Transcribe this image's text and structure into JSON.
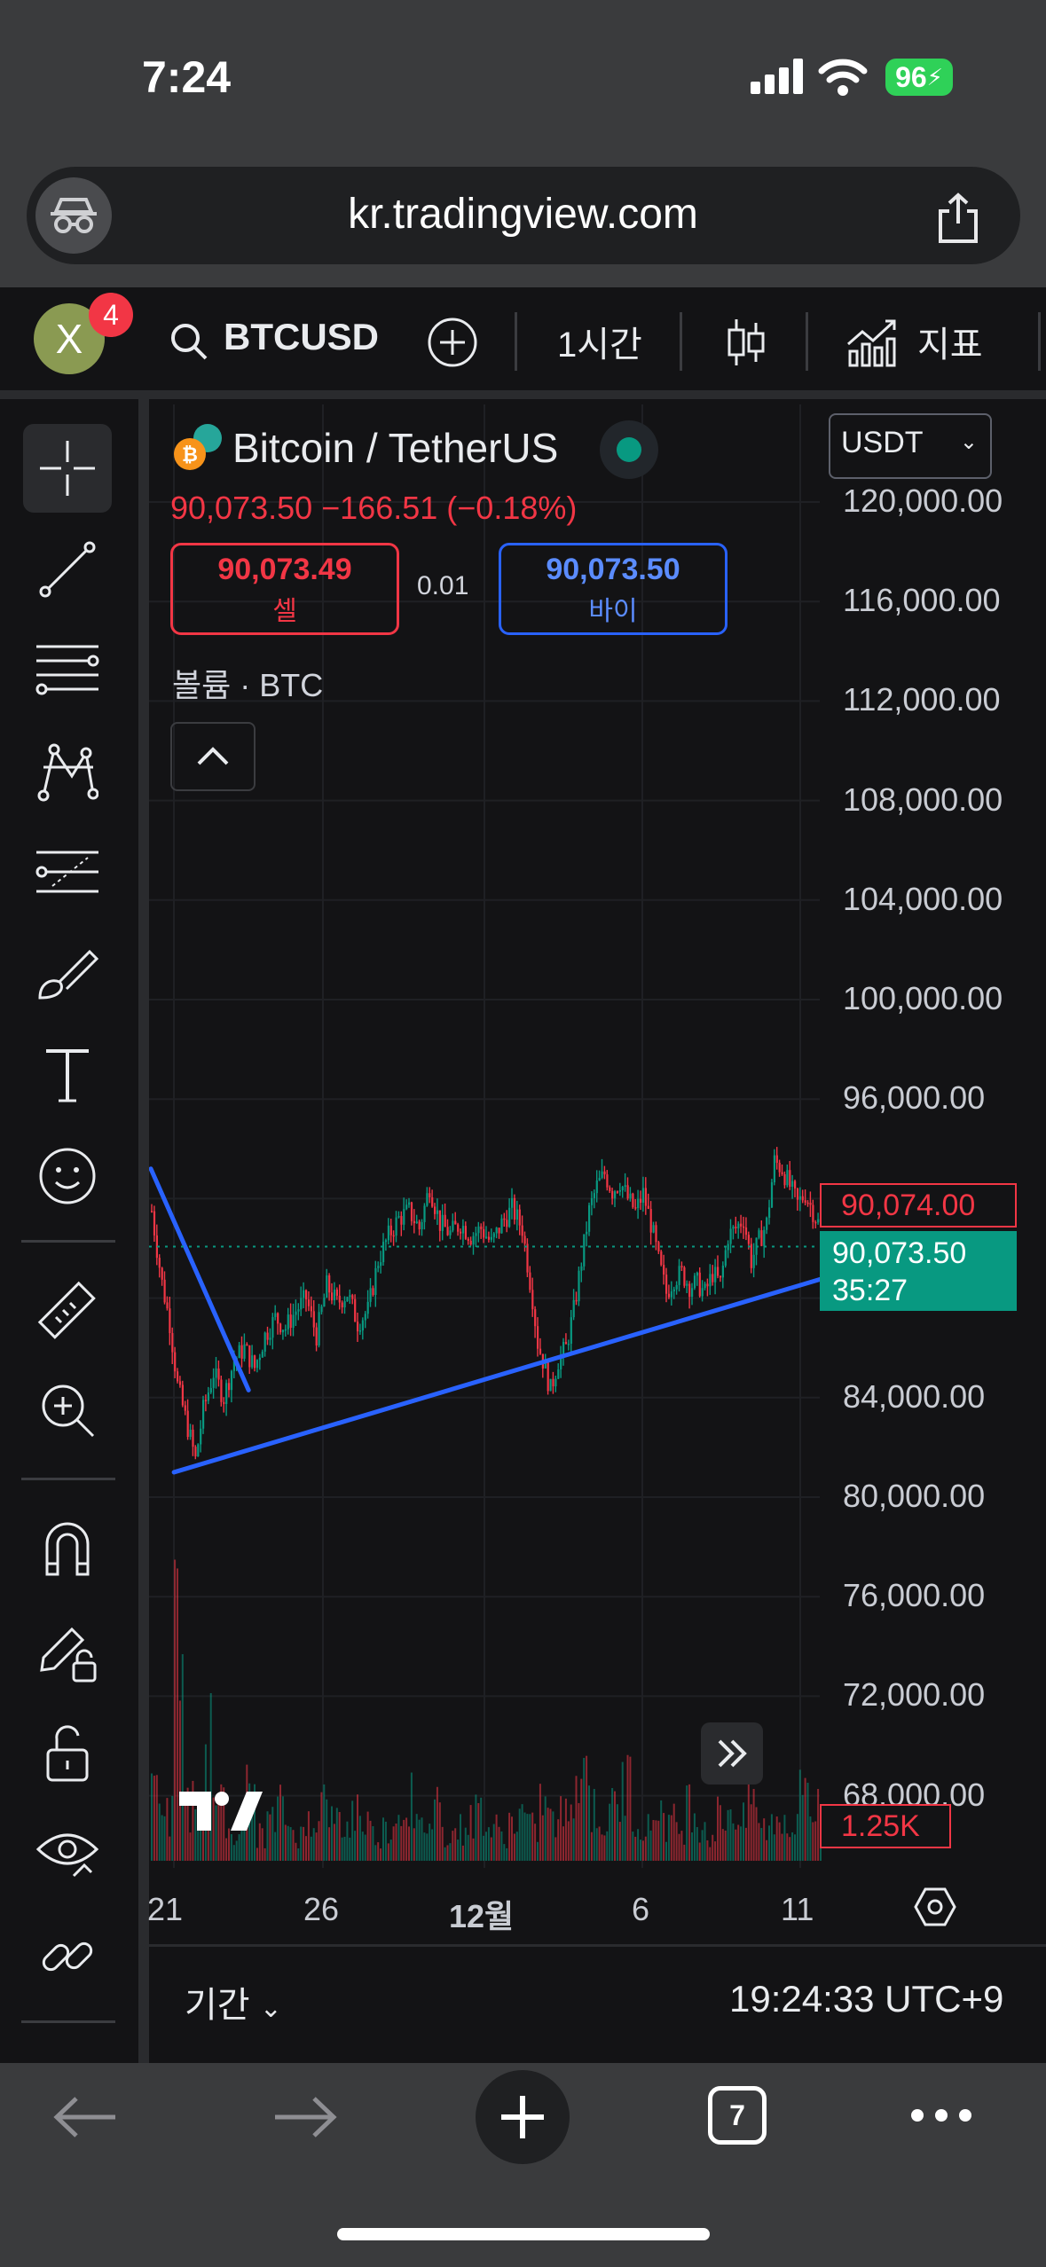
{
  "status": {
    "time": "7:24",
    "battery": "96"
  },
  "browser": {
    "url": "kr.tradingview.com",
    "tabs_count": "7"
  },
  "topbar": {
    "avatar_letter": "X",
    "notifications": "4",
    "symbol": "BTCUSD",
    "interval": "1시간",
    "indicators": "지표"
  },
  "legend": {
    "title": "Bitcoin / TetherUS",
    "change": "90,073.50  −166.51 (−0.18%)",
    "sell_price": "90,073.49",
    "sell_label": "셀",
    "spread": "0.01",
    "buy_price": "90,073.50",
    "buy_label": "바이",
    "volume_label": "볼륨 · BTC"
  },
  "currency": "USDT",
  "tags": {
    "high": "90,074.00",
    "last": "90,073.50",
    "countdown": "35:27",
    "volume": "1.25K"
  },
  "bottom": {
    "period": "기간",
    "clock": "19:24:33 UTC+9"
  },
  "colors": {
    "up": "#089981",
    "down": "#f23645",
    "trendline": "#2962ff",
    "background": "#131315"
  },
  "chart_data": {
    "type": "candlestick",
    "y_ticks": [
      "120,000.00",
      "116,000.00",
      "112,000.00",
      "108,000.00",
      "104,000.00",
      "100,000.00",
      "96,000.00",
      "84,000.00",
      "80,000.00",
      "76,000.00",
      "72,000.00",
      "68,000.00"
    ],
    "x_ticks": [
      "21",
      "26",
      "12월",
      "6",
      "11"
    ],
    "ylim": [
      66000,
      122000
    ],
    "last_price": 90073.5,
    "close_path": [
      [
        0,
        91500
      ],
      [
        2,
        90000
      ],
      [
        4,
        88600
      ],
      [
        7,
        87000
      ],
      [
        10,
        84500
      ],
      [
        14,
        82800
      ],
      [
        17,
        81500
      ],
      [
        20,
        83500
      ],
      [
        24,
        85000
      ],
      [
        28,
        84000
      ],
      [
        32,
        85500
      ],
      [
        36,
        86000
      ],
      [
        40,
        85200
      ],
      [
        44,
        86500
      ],
      [
        48,
        87200
      ],
      [
        52,
        86800
      ],
      [
        56,
        87500
      ],
      [
        60,
        88000
      ],
      [
        64,
        86500
      ],
      [
        68,
        88500
      ],
      [
        72,
        87800
      ],
      [
        76,
        88200
      ],
      [
        80,
        87000
      ],
      [
        84,
        87500
      ],
      [
        88,
        89500
      ],
      [
        92,
        90500
      ],
      [
        96,
        91200
      ],
      [
        100,
        91500
      ],
      [
        104,
        90800
      ],
      [
        108,
        92500
      ],
      [
        112,
        91000
      ],
      [
        116,
        90600
      ],
      [
        120,
        91000
      ],
      [
        124,
        90500
      ],
      [
        128,
        90800
      ],
      [
        132,
        90200
      ],
      [
        136,
        91000
      ],
      [
        140,
        91600
      ],
      [
        144,
        90800
      ],
      [
        148,
        88000
      ],
      [
        150,
        86200
      ],
      [
        152,
        85500
      ],
      [
        155,
        84300
      ],
      [
        158,
        85500
      ],
      [
        161,
        86000
      ],
      [
        164,
        87500
      ],
      [
        167,
        89500
      ],
      [
        170,
        91500
      ],
      [
        173,
        92500
      ],
      [
        176,
        93000
      ],
      [
        179,
        92300
      ],
      [
        182,
        92700
      ],
      [
        185,
        92000
      ],
      [
        188,
        91500
      ],
      [
        191,
        92200
      ],
      [
        194,
        91000
      ],
      [
        197,
        89500
      ],
      [
        200,
        88200
      ],
      [
        203,
        88800
      ],
      [
        206,
        89000
      ],
      [
        209,
        88500
      ],
      [
        212,
        88600
      ],
      [
        215,
        88200
      ],
      [
        218,
        89000
      ],
      [
        221,
        88600
      ],
      [
        224,
        90500
      ],
      [
        227,
        90800
      ],
      [
        230,
        91200
      ],
      [
        233,
        89500
      ],
      [
        236,
        90300
      ],
      [
        239,
        91000
      ],
      [
        242,
        93500
      ],
      [
        245,
        93200
      ],
      [
        248,
        92500
      ],
      [
        251,
        91800
      ],
      [
        254,
        92200
      ],
      [
        257,
        91500
      ],
      [
        260,
        90800
      ]
    ],
    "volume_path": [
      1.2,
      0.7,
      3.5,
      0.9,
      0.6,
      1.8,
      0.8,
      0.5,
      0.6,
      1.1,
      0.4,
      0.6,
      0.8,
      0.5,
      0.4,
      0.7,
      0.9,
      0.6,
      0.5,
      0.8,
      0.6,
      0.4,
      0.5,
      0.7,
      1.0,
      0.5,
      0.6,
      0.9,
      0.4,
      0.5,
      0.6,
      0.8,
      0.5,
      0.4,
      0.6,
      0.7,
      0.5,
      0.9,
      0.6,
      0.7,
      1.3,
      1.4,
      0.8,
      0.6,
      0.9,
      1.2,
      0.7,
      0.5,
      0.8,
      0.6,
      0.5,
      0.9,
      0.6,
      0.4,
      0.7,
      0.8,
      0.6,
      1.0,
      0.5,
      0.6,
      0.7,
      0.5,
      1.3,
      0.8,
      0.6
    ],
    "trendlines": [
      {
        "from": [
          0,
          93200
        ],
        "to": [
          38,
          84300
        ]
      },
      {
        "from": [
          9,
          81000
        ],
        "to": [
          268,
          89000
        ]
      }
    ]
  }
}
